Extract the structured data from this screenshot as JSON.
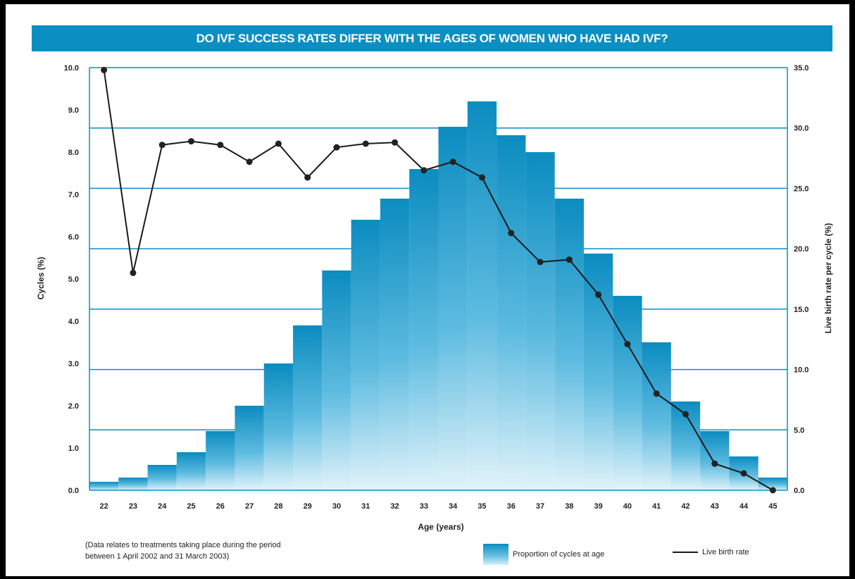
{
  "chart_data": {
    "type": "bar",
    "title": "DO IVF SUCCESS RATES DIFFER WITH THE AGES OF WOMEN WHO HAVE HAD IVF?",
    "xlabel": "Age (years)",
    "ylabel": "Cycles (%)",
    "y2label": "Live birth rate per cycle (%)",
    "categories": [
      "22",
      "23",
      "24",
      "25",
      "26",
      "27",
      "28",
      "29",
      "30",
      "31",
      "32",
      "33",
      "34",
      "35",
      "36",
      "37",
      "38",
      "39",
      "40",
      "41",
      "42",
      "43",
      "44",
      "45"
    ],
    "ylim": [
      0,
      10
    ],
    "y2lim": [
      0,
      35
    ],
    "yticks": [
      "0.0",
      "1.0",
      "2.0",
      "3.0",
      "4.0",
      "5.0",
      "6.0",
      "7.0",
      "8.0",
      "9.0",
      "10.0"
    ],
    "y2ticks": [
      "0.0",
      "5.0",
      "10.0",
      "15.0",
      "20.0",
      "25.0",
      "30.0",
      "35.0"
    ],
    "grid": true,
    "legend_position": "bottom",
    "series": [
      {
        "name": "Proportion of cycles at age",
        "type": "bar",
        "axis": "left",
        "values": [
          0.2,
          0.3,
          0.6,
          0.9,
          1.4,
          2.0,
          3.0,
          3.9,
          5.2,
          6.4,
          6.9,
          7.6,
          8.6,
          9.2,
          8.4,
          8.0,
          6.9,
          5.6,
          4.6,
          3.5,
          2.1,
          1.4,
          0.8,
          0.3
        ]
      },
      {
        "name": "Live birth rate",
        "type": "line",
        "axis": "right",
        "values": [
          34.8,
          18.0,
          28.6,
          28.9,
          28.6,
          27.2,
          28.7,
          25.9,
          28.4,
          28.7,
          28.8,
          26.5,
          27.2,
          25.9,
          21.3,
          18.9,
          19.1,
          16.2,
          12.1,
          8.0,
          6.3,
          2.2,
          1.4,
          0.0
        ]
      }
    ],
    "colors": {
      "bar_top": "#0b8cc0",
      "bar_bottom": "#e2f3fa",
      "grid": "#0a8fc3",
      "line": "#1a1a1a",
      "title_band": "#0a8fc3"
    }
  },
  "footnote": "(Data relates to treatments taking place during the period\nbetween 1 April 2002 and 31 March 2003)",
  "legend": {
    "bars_label": "Proportion of cycles at age",
    "line_label": "Live birth rate"
  }
}
